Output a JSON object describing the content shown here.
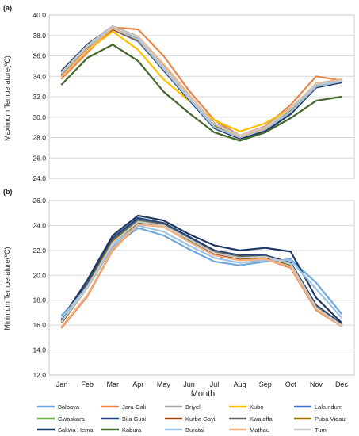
{
  "chart_data": [
    {
      "type": "line",
      "panel_label": "(a)",
      "title": "",
      "xlabel": "",
      "ylabel": "Maximum Temperature(ºC)",
      "ylim": [
        24.0,
        40.0
      ],
      "yticks": [
        "24.0",
        "26.0",
        "28.0",
        "30.0",
        "32.0",
        "34.0",
        "36.0",
        "38.0",
        "40.0"
      ],
      "categories": [
        "Jan",
        "Feb",
        "Mar",
        "Apr",
        "May",
        "Jun",
        "Jul",
        "Aug",
        "Sep",
        "Oct",
        "Nov",
        "Dec"
      ],
      "grid": true,
      "series": [
        {
          "name": "Balbaya",
          "color": "#6fa8dc",
          "values": [
            34.3,
            36.9,
            38.6,
            37.4,
            34.6,
            31.7,
            29.0,
            28.1,
            28.8,
            30.6,
            33.0,
            33.6
          ]
        },
        {
          "name": "Jara-Dali",
          "color": "#e8864a",
          "values": [
            33.8,
            36.3,
            38.8,
            38.6,
            36.0,
            32.6,
            29.7,
            28.2,
            29.1,
            31.2,
            34.0,
            33.6
          ]
        },
        {
          "name": "Briyel",
          "color": "#a6a6a6",
          "values": [
            34.6,
            37.1,
            38.9,
            37.9,
            35.0,
            32.1,
            29.4,
            28.2,
            29.0,
            30.9,
            33.2,
            33.7
          ]
        },
        {
          "name": "Kubo",
          "color": "#ffc000",
          "values": [
            34.0,
            36.5,
            38.4,
            36.6,
            33.7,
            31.6,
            29.7,
            28.6,
            29.4,
            30.8,
            33.3,
            33.7
          ]
        },
        {
          "name": "Lakundum",
          "color": "#4472c4",
          "values": [
            34.4,
            36.9,
            38.7,
            37.6,
            34.7,
            31.8,
            29.1,
            28.0,
            28.8,
            30.5,
            33.0,
            33.5
          ]
        },
        {
          "name": "Gwaskara",
          "color": "#70ad47",
          "values": [
            34.2,
            36.8,
            38.7,
            37.5,
            34.6,
            31.8,
            29.1,
            28.1,
            28.8,
            30.6,
            33.1,
            33.6
          ]
        },
        {
          "name": "Bila Gusi",
          "color": "#264478",
          "values": [
            34.4,
            37.0,
            38.8,
            37.7,
            34.8,
            31.9,
            29.1,
            28.0,
            28.7,
            30.5,
            33.0,
            33.5
          ]
        },
        {
          "name": "Kurba Gayi",
          "color": "#9e480e",
          "values": [
            34.1,
            36.7,
            38.6,
            37.5,
            34.6,
            31.8,
            29.1,
            28.1,
            28.8,
            30.7,
            33.1,
            33.6
          ]
        },
        {
          "name": "Kwajaffa",
          "color": "#636363",
          "values": [
            34.5,
            37.1,
            38.9,
            37.8,
            34.9,
            32.0,
            29.2,
            28.1,
            28.9,
            30.7,
            33.1,
            33.6
          ]
        },
        {
          "name": "Puba Vidau",
          "color": "#997300",
          "values": [
            34.2,
            36.8,
            38.7,
            37.6,
            34.7,
            31.8,
            29.1,
            28.1,
            28.8,
            30.6,
            33.1,
            33.6
          ]
        },
        {
          "name": "Sakwa Hema",
          "color": "#1f3864",
          "values": [
            34.5,
            37.1,
            38.8,
            37.6,
            34.6,
            31.7,
            28.9,
            27.9,
            28.6,
            30.3,
            32.9,
            33.4
          ]
        },
        {
          "name": "Kabura",
          "color": "#43682b",
          "values": [
            33.2,
            35.8,
            37.1,
            35.5,
            32.5,
            30.4,
            28.5,
            27.7,
            28.5,
            29.9,
            31.6,
            32.0
          ]
        },
        {
          "name": "Buratai",
          "color": "#9dc3e6",
          "values": [
            34.3,
            36.9,
            38.7,
            37.6,
            34.7,
            31.8,
            29.0,
            28.0,
            28.8,
            30.5,
            33.0,
            33.5
          ]
        },
        {
          "name": "Mathau",
          "color": "#f4b183",
          "values": [
            34.0,
            36.6,
            38.7,
            37.9,
            35.2,
            32.2,
            29.3,
            28.1,
            28.9,
            30.8,
            33.3,
            33.7
          ]
        },
        {
          "name": "Tum",
          "color": "#c9c9c9",
          "values": [
            34.4,
            37.0,
            38.9,
            37.8,
            34.9,
            32.0,
            29.3,
            28.2,
            29.0,
            30.8,
            33.2,
            33.6
          ]
        }
      ]
    },
    {
      "type": "line",
      "panel_label": "(b)",
      "title": "",
      "xlabel": "Month",
      "ylabel": "Minimum Temperature(ºC)",
      "ylim": [
        12.0,
        26.0
      ],
      "yticks": [
        "12.0",
        "14.0",
        "16.0",
        "18.0",
        "20.0",
        "22.0",
        "24.0",
        "26.0"
      ],
      "categories": [
        "Jan",
        "Feb",
        "Mar",
        "Apr",
        "May",
        "Jun",
        "Jul",
        "Aug",
        "Sep",
        "Oct",
        "Nov",
        "Dec"
      ],
      "grid": true,
      "legend_position": "bottom",
      "series": [
        {
          "name": "Balbaya",
          "color": "#6fa8dc",
          "values": [
            16.8,
            19.0,
            22.3,
            23.8,
            23.2,
            22.1,
            21.1,
            20.8,
            21.1,
            21.3,
            19.4,
            16.9
          ]
        },
        {
          "name": "Jara-Dali",
          "color": "#e8864a",
          "values": [
            15.8,
            18.3,
            22.0,
            24.1,
            23.9,
            22.7,
            21.6,
            21.2,
            21.3,
            20.6,
            17.2,
            15.9
          ]
        },
        {
          "name": "Briyel",
          "color": "#a6a6a6",
          "values": [
            16.3,
            19.0,
            22.7,
            24.3,
            24.1,
            22.9,
            21.9,
            21.5,
            21.5,
            20.9,
            17.4,
            16.0
          ]
        },
        {
          "name": "Kubo",
          "color": "#ffc000",
          "values": [
            16.4,
            19.2,
            22.8,
            24.4,
            24.1,
            23.0,
            21.9,
            21.5,
            21.6,
            21.0,
            17.5,
            16.1
          ]
        },
        {
          "name": "Lakundum",
          "color": "#4472c4",
          "values": [
            16.5,
            19.3,
            22.9,
            24.5,
            24.2,
            23.0,
            22.0,
            21.6,
            21.6,
            21.0,
            17.6,
            16.1
          ]
        },
        {
          "name": "Gwaskara",
          "color": "#70ad47",
          "values": [
            16.4,
            19.2,
            22.8,
            24.3,
            24.1,
            22.9,
            21.9,
            21.5,
            21.5,
            20.9,
            17.5,
            16.0
          ]
        },
        {
          "name": "Bila Gusi",
          "color": "#264478",
          "values": [
            16.4,
            19.3,
            23.0,
            24.6,
            24.2,
            23.1,
            22.0,
            21.6,
            21.6,
            21.0,
            17.6,
            16.1
          ]
        },
        {
          "name": "Kurba Gayi",
          "color": "#9e480e",
          "values": [
            16.3,
            19.1,
            22.7,
            24.2,
            24.0,
            22.8,
            21.7,
            21.3,
            21.4,
            20.8,
            17.4,
            16.0
          ]
        },
        {
          "name": "Kwajaffa",
          "color": "#636363",
          "values": [
            16.4,
            19.2,
            22.8,
            24.4,
            24.1,
            22.9,
            21.9,
            21.5,
            21.5,
            20.9,
            17.5,
            16.0
          ]
        },
        {
          "name": "Puba Vidau",
          "color": "#997300",
          "values": [
            16.3,
            19.1,
            22.7,
            24.3,
            24.0,
            22.9,
            21.8,
            21.4,
            21.5,
            20.9,
            17.4,
            16.0
          ]
        },
        {
          "name": "Sakwa Hema",
          "color": "#1f3864",
          "values": [
            16.5,
            19.6,
            23.2,
            24.8,
            24.4,
            23.3,
            22.4,
            22.0,
            22.2,
            21.9,
            18.2,
            16.2
          ]
        },
        {
          "name": "Kabura",
          "color": "#43682b",
          "values": [
            16.2,
            19.0,
            22.6,
            24.2,
            24.0,
            22.8,
            21.8,
            21.4,
            21.5,
            20.8,
            17.4,
            16.0
          ]
        },
        {
          "name": "Buratai",
          "color": "#9dc3e6",
          "values": [
            16.6,
            19.1,
            22.4,
            24.0,
            23.5,
            22.4,
            21.4,
            21.0,
            21.2,
            21.2,
            18.9,
            16.6
          ]
        },
        {
          "name": "Mathau",
          "color": "#f4b183",
          "values": [
            15.9,
            18.4,
            22.1,
            24.1,
            23.9,
            22.7,
            21.6,
            21.2,
            21.3,
            20.7,
            17.3,
            15.9
          ]
        },
        {
          "name": "Tum",
          "color": "#c9c9c9",
          "values": [
            16.3,
            19.0,
            22.6,
            24.3,
            24.0,
            22.9,
            21.8,
            21.4,
            21.5,
            20.9,
            17.4,
            16.0
          ]
        }
      ]
    }
  ]
}
